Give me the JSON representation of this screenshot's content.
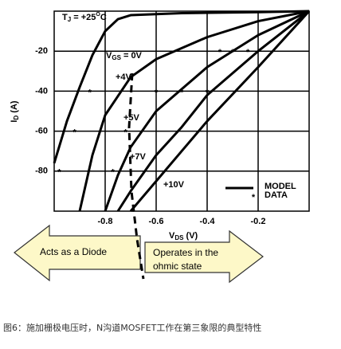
{
  "chart_data": {
    "type": "line",
    "title": {
      "main": "T",
      "sub": "J",
      "rest": " = +25",
      "sup": "O",
      "end": "C"
    },
    "xlabel": {
      "main": "V",
      "sub": "DS",
      "rest": " (V)"
    },
    "ylabel": {
      "main": "I",
      "sub": "D",
      "rest": " (A)"
    },
    "xlim": [
      -1.0,
      0
    ],
    "ylim": [
      -100,
      0
    ],
    "xticks": [
      -0.8,
      -0.6,
      -0.4,
      -0.2
    ],
    "yticks": [
      -20,
      -40,
      -60,
      -80
    ],
    "grid": true,
    "color": "#000000",
    "series": [
      {
        "label": {
          "main": "V",
          "sub": "GS",
          "rest": " = 0V"
        },
        "x": [
          -1.0,
          -0.95,
          -0.9,
          -0.85,
          -0.8,
          -0.75,
          -0.7,
          -0.5,
          -0.2,
          0
        ],
        "values": [
          -76,
          -55,
          -38,
          -22,
          -10,
          -4,
          -2,
          -1,
          -0.5,
          0
        ]
      },
      {
        "label": "+4V",
        "x": [
          -0.9,
          -0.85,
          -0.8,
          -0.7,
          -0.6,
          -0.4,
          -0.2,
          0
        ],
        "values": [
          -100,
          -72,
          -52,
          -33,
          -24,
          -13,
          -5,
          0
        ]
      },
      {
        "label": "+5V",
        "x": [
          -0.8,
          -0.75,
          -0.7,
          -0.6,
          -0.5,
          -0.4,
          -0.2,
          0
        ],
        "values": [
          -100,
          -82,
          -68,
          -50,
          -39,
          -28,
          -12,
          0
        ]
      },
      {
        "label": "+7V",
        "x": [
          -0.75,
          -0.7,
          -0.6,
          -0.5,
          -0.4,
          -0.2,
          0
        ],
        "values": [
          -100,
          -90,
          -72,
          -58,
          -42,
          -20,
          0
        ]
      },
      {
        "label": "+10V",
        "x": [
          -0.7,
          -0.6,
          -0.5,
          -0.4,
          -0.2,
          0
        ],
        "values": [
          -100,
          -85,
          -70,
          -55,
          -28,
          0
        ]
      }
    ],
    "data_points": {
      "x": [
        -0.98,
        -0.92,
        -0.86,
        -0.77,
        -0.72,
        -0.6,
        -0.5,
        -0.4,
        -0.35,
        -0.3,
        -0.24
      ],
      "values": [
        -80,
        -60,
        -40,
        -80,
        -60,
        -40,
        -40,
        -40,
        -20,
        -20,
        -20
      ]
    },
    "legend": [
      {
        "label": "MODEL"
      },
      {
        "marker": "*",
        "label": "DATA"
      }
    ]
  },
  "annotations": [
    "Acts as a Diode",
    "Operates in the",
    "ohmic state"
  ],
  "caption": "图6：施加栅极电压时，N沟道MOSFET工作在第三象限的典型特性"
}
